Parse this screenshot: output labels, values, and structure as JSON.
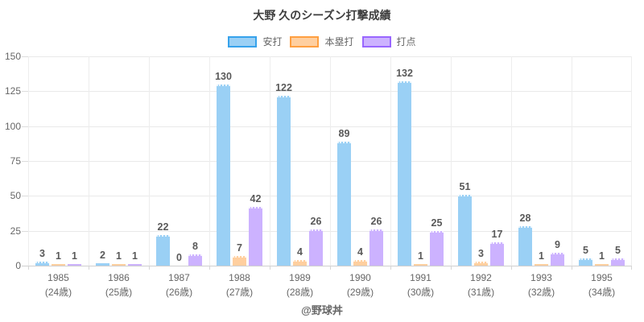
{
  "watermark": "@野球丼",
  "chart_data": {
    "type": "bar",
    "title": "大野 久のシーズン打撃成績",
    "categories": [
      "1985",
      "1986",
      "1987",
      "1988",
      "1989",
      "1990",
      "1991",
      "1992",
      "1993",
      "1995"
    ],
    "category_sublabels": [
      "(24歳)",
      "(25歳)",
      "(26歳)",
      "(27歳)",
      "(28歳)",
      "(29歳)",
      "(30歳)",
      "(31歳)",
      "(32歳)",
      "(34歳)"
    ],
    "series": [
      {
        "name": "安打",
        "fill": "#9AD0F5",
        "border": "#36A2EB",
        "values": [
          3,
          2,
          22,
          130,
          122,
          89,
          132,
          51,
          28,
          5
        ]
      },
      {
        "name": "本塁打",
        "fill": "#FFCF9F",
        "border": "#FF9F40",
        "values": [
          1,
          1,
          0,
          7,
          4,
          4,
          1,
          3,
          1,
          1
        ]
      },
      {
        "name": "打点",
        "fill": "#CCB2FF",
        "border": "#9966FF",
        "values": [
          1,
          1,
          8,
          42,
          26,
          26,
          25,
          17,
          9,
          5
        ]
      }
    ],
    "xlabel": "",
    "ylabel": "",
    "ylim": [
      0,
      150
    ],
    "yticks": [
      0,
      25,
      50,
      75,
      100,
      125,
      150
    ],
    "grid": true,
    "legend_position": "top",
    "value_labels": true
  }
}
